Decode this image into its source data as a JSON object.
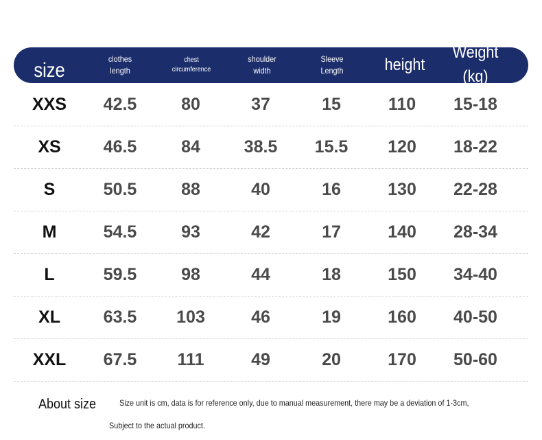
{
  "table": {
    "headers": [
      {
        "key": "size",
        "label": "size"
      },
      {
        "key": "clothes-length",
        "label": "clothes\nlength"
      },
      {
        "key": "chest-circumference",
        "label": "chest\ncircumference"
      },
      {
        "key": "shoulder-width",
        "label": "shoulder\nwidth"
      },
      {
        "key": "sleeve-length",
        "label": "Sleeve\nLength"
      },
      {
        "key": "height",
        "label": "height"
      },
      {
        "key": "weight",
        "label": "Weight (kg)"
      }
    ],
    "rows": [
      [
        "XXS",
        "42.5",
        "80",
        "37",
        "15",
        "110",
        "15-18"
      ],
      [
        "XS",
        "46.5",
        "84",
        "38.5",
        "15.5",
        "120",
        "18-22"
      ],
      [
        "S",
        "50.5",
        "88",
        "40",
        "16",
        "130",
        "22-28"
      ],
      [
        "M",
        "54.5",
        "93",
        "42",
        "17",
        "140",
        "28-34"
      ],
      [
        "L",
        "59.5",
        "98",
        "44",
        "18",
        "150",
        "34-40"
      ],
      [
        "XL",
        "63.5",
        "103",
        "46",
        "19",
        "160",
        "40-50"
      ],
      [
        "XXL",
        "67.5",
        "111",
        "49",
        "20",
        "170",
        "50-60"
      ]
    ]
  },
  "footer": {
    "title": "About size",
    "note_line1": "Size unit is cm, data is for reference only, due to manual measurement, there may be a deviation of 1-3cm,",
    "note_line2": "Subject to the actual product."
  }
}
